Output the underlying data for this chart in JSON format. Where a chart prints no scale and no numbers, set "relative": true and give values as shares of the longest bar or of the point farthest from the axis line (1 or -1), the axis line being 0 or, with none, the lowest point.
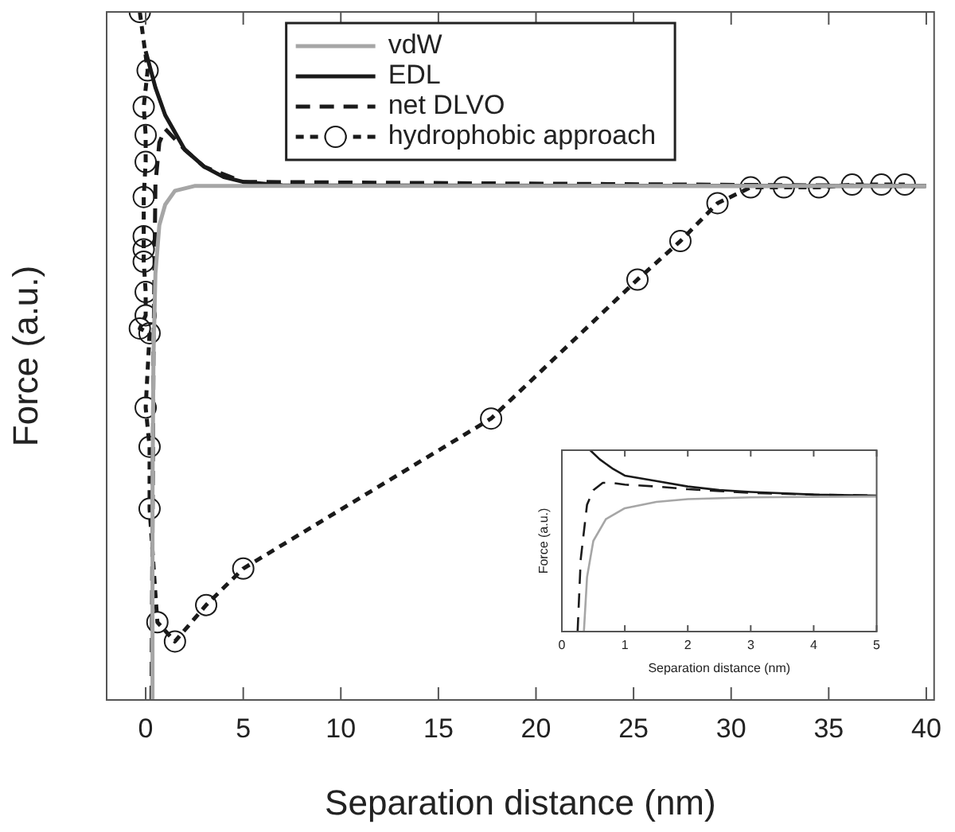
{
  "chart_data": [
    {
      "type": "line",
      "relative": true,
      "xlabel": "Separation distance (nm)",
      "ylabel": "Force (a.u.)",
      "xlim": [
        -2,
        40.4
      ],
      "xticks": [
        0,
        5,
        10,
        15,
        20,
        25,
        30,
        35,
        40
      ],
      "tick_labels": "x",
      "grid": false,
      "legend": "top",
      "series": [
        {
          "name": "vdW",
          "color": "#a6a6a6",
          "line_style": "solid",
          "marker": "none",
          "x": [
            0.3,
            0.35,
            0.4,
            0.5,
            0.7,
            1,
            1.5,
            2.5,
            40
          ],
          "values": [
            0,
            0.3,
            0.5,
            0.62,
            0.69,
            0.72,
            0.74,
            0.747,
            0.747
          ]
        },
        {
          "name": "EDL",
          "color": "#1a1a1a",
          "line_style": "solid",
          "marker": "none",
          "x": [
            0,
            0.5,
            1,
            2,
            3,
            4,
            5,
            7,
            40
          ],
          "values": [
            0.943,
            0.89,
            0.85,
            0.8,
            0.775,
            0.76,
            0.753,
            0.748,
            0.747
          ]
        },
        {
          "name": "net DLVO",
          "color": "#1a1a1a",
          "line_style": "dashed",
          "marker": "none",
          "x": [
            0.3,
            0.4,
            0.5,
            0.7,
            1,
            2,
            3,
            5,
            40
          ],
          "values": [
            0,
            0.5,
            0.75,
            0.81,
            0.83,
            0.8,
            0.775,
            0.753,
            0.747
          ]
        },
        {
          "name": "hydrophobic approach",
          "color": "#1a1a1a",
          "line_style": "dotted",
          "marker": "circle",
          "x": [
            -0.3,
            0.1,
            -0.1,
            0,
            0,
            -0.1,
            -0.1,
            -0.1,
            -0.1,
            0,
            0,
            -0.3,
            0.2,
            0,
            0.2,
            0.2,
            0.6,
            1.5,
            3.1,
            5,
            17.7,
            25.2,
            27.4,
            29.3,
            31,
            32.7,
            34.5,
            36.2,
            37.7,
            38.9
          ],
          "values": [
            1,
            0.915,
            0.862,
            0.821,
            0.782,
            0.731,
            0.674,
            0.655,
            0.637,
            0.593,
            0.559,
            0.54,
            0.533,
            0.425,
            0.368,
            0.278,
            0.113,
            0.085,
            0.138,
            0.191,
            0.409,
            0.611,
            0.667,
            0.722,
            0.745,
            0.745,
            0.745,
            0.749,
            0.749,
            0.749
          ]
        }
      ]
    },
    {
      "type": "line",
      "relative": true,
      "xlabel": "Separation distance (nm)",
      "ylabel": "Force (a.u.)",
      "xlim": [
        0,
        5
      ],
      "xticks": [
        0,
        1,
        2,
        3,
        4,
        5
      ],
      "tick_labels": "x",
      "grid": false,
      "series": [
        {
          "color": "#a6a6a6",
          "line_style": "solid",
          "marker": "none",
          "x": [
            0.35,
            0.4,
            0.5,
            0.7,
            1,
            1.5,
            2,
            3,
            5
          ],
          "values": [
            0,
            0.3,
            0.5,
            0.62,
            0.68,
            0.715,
            0.73,
            0.74,
            0.745
          ]
        },
        {
          "color": "#1a1a1a",
          "line_style": "solid",
          "marker": "none",
          "x": [
            0.45,
            0.6,
            0.8,
            1,
            1.5,
            2,
            2.5,
            3,
            4,
            5
          ],
          "values": [
            1,
            0.95,
            0.9,
            0.86,
            0.83,
            0.8,
            0.78,
            0.77,
            0.755,
            0.75
          ]
        },
        {
          "color": "#1a1a1a",
          "line_style": "dashed",
          "marker": "none",
          "x": [
            0.25,
            0.3,
            0.4,
            0.5,
            0.65,
            0.8,
            1,
            1.5,
            2,
            3,
            4,
            5
          ],
          "values": [
            0,
            0.4,
            0.7,
            0.78,
            0.82,
            0.82,
            0.81,
            0.8,
            0.785,
            0.765,
            0.755,
            0.75
          ]
        }
      ]
    }
  ]
}
